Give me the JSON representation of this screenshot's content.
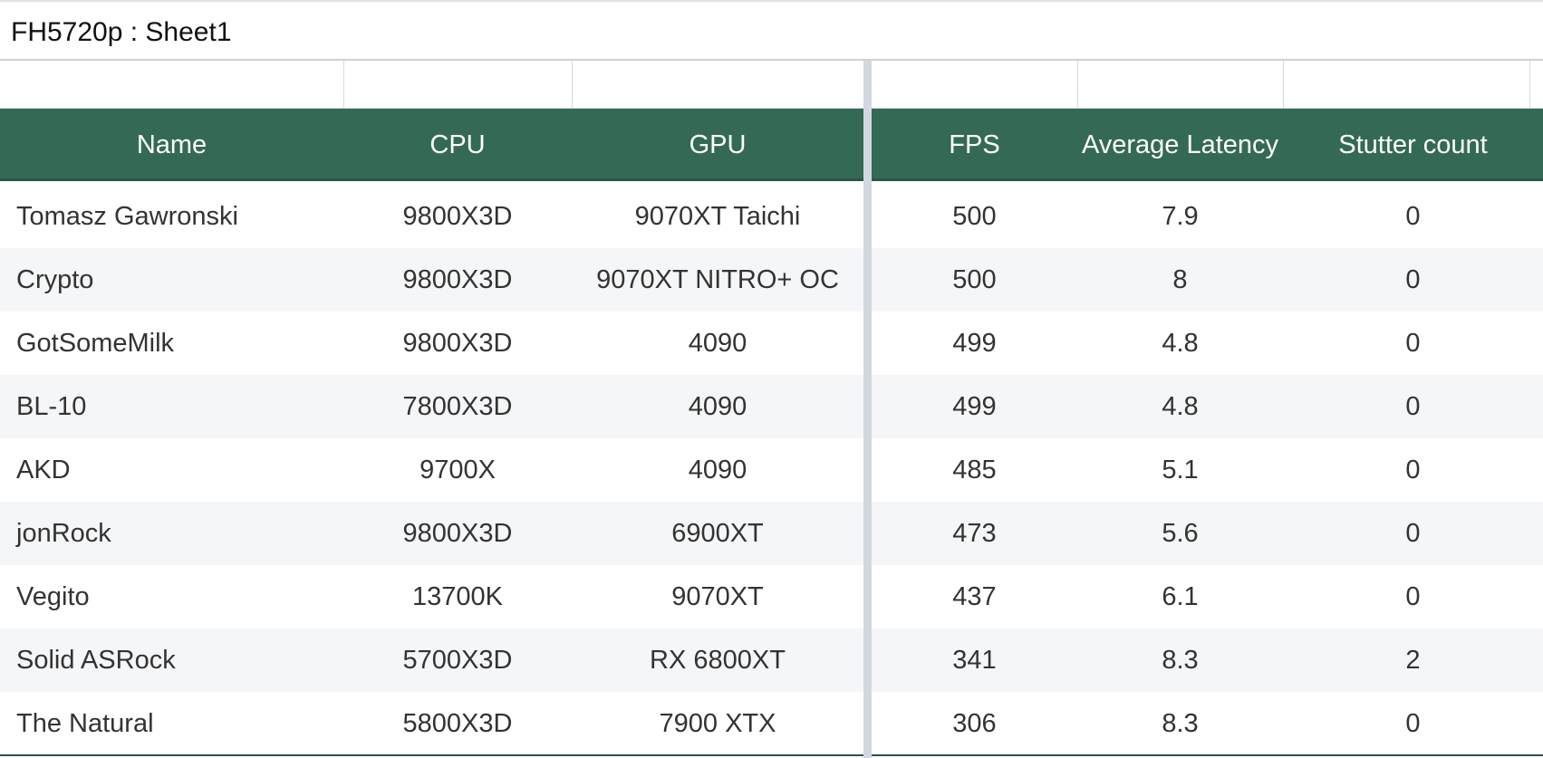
{
  "header": {
    "title": "FH5720p : Sheet1"
  },
  "table": {
    "columns": [
      "Name",
      "CPU",
      "GPU",
      "FPS",
      "Average Latency",
      "Stutter count"
    ],
    "rows": [
      [
        "Tomasz Gawronski",
        "9800X3D",
        "9070XT Taichi",
        500,
        7.9,
        0
      ],
      [
        "Crypto",
        "9800X3D",
        "9070XT NITRO+ OC",
        500,
        8,
        0
      ],
      [
        "GotSomeMilk",
        "9800X3D",
        "4090",
        499,
        4.8,
        0
      ],
      [
        "BL-10",
        "7800X3D",
        "4090",
        499,
        4.8,
        0
      ],
      [
        "AKD",
        "9700X",
        "4090",
        485,
        5.1,
        0
      ],
      [
        "jonRock",
        "9800X3D",
        "6900XT",
        473,
        5.6,
        0
      ],
      [
        "Vegito",
        "13700K",
        "9070XT",
        437,
        6.1,
        0
      ],
      [
        "Solid ASRock",
        "5700X3D",
        "RX 6800XT",
        341,
        8.3,
        2
      ],
      [
        "The Natural",
        "5800X3D",
        "7900 XTX",
        306,
        8.3,
        0
      ]
    ]
  }
}
